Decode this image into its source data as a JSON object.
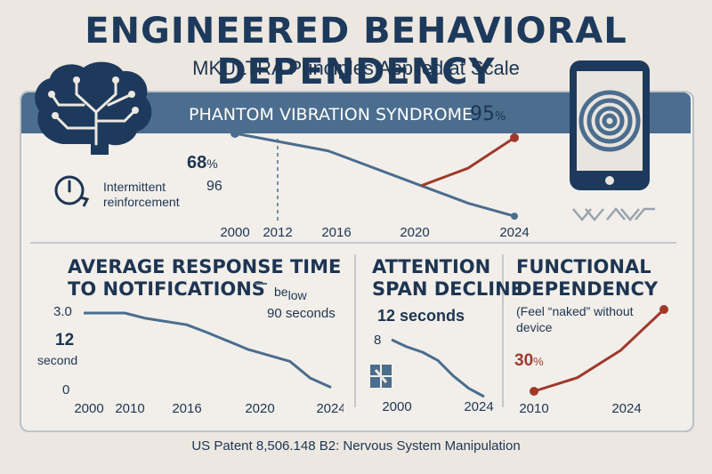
{
  "header": {
    "title": "ENGINEERED BEHAVIORAL DEPENDENCY",
    "subtitle": "MKULTRA Principles Applied at Scale"
  },
  "banner": {
    "label": "PHANTOM VIBRATION SYNDROME",
    "pct_value": "95",
    "pct_unit": "%"
  },
  "top_chart": {
    "pct_label": "68",
    "pct_unit": "%",
    "value_label": "96",
    "icon_caption_1": "Intermittent",
    "icon_caption_2": "reinforcement"
  },
  "left_panel": {
    "title_line1": "AVERAGE RESPONSE TIME",
    "title_line2": "TO NOTIFICATIONS",
    "note_be": "be",
    "note_low": "low",
    "note_line2": "90 seconds",
    "y_top": "3.0",
    "y_mid": "12",
    "y_mid_unit": "second",
    "y_bottom": "0"
  },
  "mid_panel": {
    "title_line1": "ATTENTION",
    "title_line2": "SPAN DECLINE",
    "value": "12 seconds",
    "y_start": "8"
  },
  "right_panel": {
    "title_line1": "FUNCTIONAL",
    "title_line2": "DEPENDENCY",
    "note_line1": "(Feel “naked” without",
    "note_line2": "device",
    "pct": "30",
    "pct_unit": "%"
  },
  "footer": {
    "text": "US Patent 8,506.148 B2: Nervous System Manipulation"
  },
  "colors": {
    "blue": "#4b6d8e",
    "red": "#a0392b",
    "navy": "#1d3552"
  },
  "icons": [
    "brain-circuit-icon",
    "spiral-phone-icon",
    "timer-icon",
    "grid-squares-icon",
    "chevron-pattern-icon"
  ],
  "chart_data": [
    {
      "type": "line",
      "name": "phantom-vibration",
      "x_ticks": [
        "2000",
        "2012",
        "2016",
        "2020",
        "2024"
      ],
      "series": [
        {
          "x": [
            2000,
            2008,
            2016,
            2020,
            2024
          ],
          "y": [
            96,
            92,
            84,
            80,
            77
          ]
        },
        {
          "x": [
            2016,
            2020,
            2024
          ],
          "y": [
            84,
            88,
            95
          ]
        }
      ],
      "xlim": [
        2000,
        2024
      ],
      "ylim": [
        76,
        96
      ]
    },
    {
      "type": "line",
      "name": "average-response-time",
      "x_ticks": [
        "2000",
        "2010",
        "2016",
        "2020",
        "2024"
      ],
      "series": [
        {
          "x": [
            2000,
            2004,
            2006,
            2010,
            2012,
            2016,
            2020,
            2022,
            2024
          ],
          "y": [
            3.0,
            3.0,
            2.8,
            2.55,
            2.25,
            1.6,
            1.15,
            0.5,
            0.15
          ]
        }
      ],
      "xlim": [
        2000,
        2024
      ],
      "ylim": [
        0,
        3.0
      ]
    },
    {
      "type": "line",
      "name": "attention-span",
      "x_ticks": [
        "2000",
        "2024"
      ],
      "series": [
        {
          "x": [
            2000,
            2004,
            2008,
            2012,
            2016,
            2020,
            2024
          ],
          "y": [
            8,
            7.3,
            6.8,
            6.0,
            4.5,
            3.3,
            2.5
          ]
        }
      ],
      "xlim": [
        2000,
        2024
      ],
      "ylim": [
        2.5,
        8
      ]
    },
    {
      "type": "line",
      "name": "functional-dependency",
      "x_ticks": [
        "2010",
        "2024"
      ],
      "series": [
        {
          "x": [
            2010,
            2016,
            2022,
            2028
          ],
          "y": [
            30,
            40,
            60,
            90
          ]
        }
      ],
      "xlim": [
        2010,
        2028
      ],
      "ylim": [
        30,
        90
      ]
    }
  ]
}
